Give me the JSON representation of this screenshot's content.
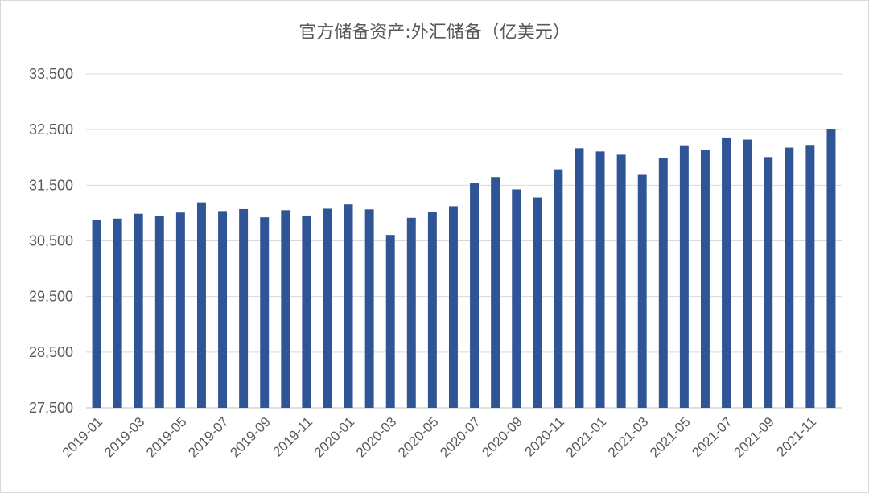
{
  "chart_data": {
    "type": "bar",
    "title": "官方储备资产:外汇储备（亿美元）",
    "xlabel": "",
    "ylabel": "",
    "ylim": [
      27500,
      33500
    ],
    "yticks": [
      27500,
      28500,
      29500,
      30500,
      31500,
      32500,
      33500
    ],
    "ytick_labels": [
      "27,500",
      "28,500",
      "29,500",
      "30,500",
      "31,500",
      "32,500",
      "33,500"
    ],
    "grid": true,
    "legend": "none",
    "bar_color": "#2f5597",
    "categories": [
      "2019-01",
      "2019-02",
      "2019-03",
      "2019-04",
      "2019-05",
      "2019-06",
      "2019-07",
      "2019-08",
      "2019-09",
      "2019-10",
      "2019-11",
      "2019-12",
      "2020-01",
      "2020-02",
      "2020-03",
      "2020-04",
      "2020-05",
      "2020-06",
      "2020-07",
      "2020-08",
      "2020-09",
      "2020-10",
      "2020-11",
      "2020-12",
      "2021-01",
      "2021-02",
      "2021-03",
      "2021-04",
      "2021-05",
      "2021-06",
      "2021-07",
      "2021-08",
      "2021-09",
      "2021-10",
      "2021-11",
      "2021-12"
    ],
    "x_tick_labels": [
      "2019-01",
      "2019-03",
      "2019-05",
      "2019-07",
      "2019-09",
      "2019-11",
      "2020-01",
      "2020-03",
      "2020-05",
      "2020-07",
      "2020-09",
      "2020-11",
      "2021-01",
      "2021-03",
      "2021-05",
      "2021-07",
      "2021-09",
      "2021-11"
    ],
    "values": [
      30879,
      30901,
      30988,
      30950,
      31010,
      31192,
      31037,
      31072,
      30924,
      31052,
      30956,
      31079,
      31155,
      31067,
      30606,
      30915,
      31017,
      31123,
      31543,
      31646,
      31426,
      31280,
      31785,
      32165,
      32107,
      32048,
      31700,
      31982,
      32218,
      32140,
      32359,
      32321,
      32006,
      32176,
      32224,
      32502
    ]
  }
}
